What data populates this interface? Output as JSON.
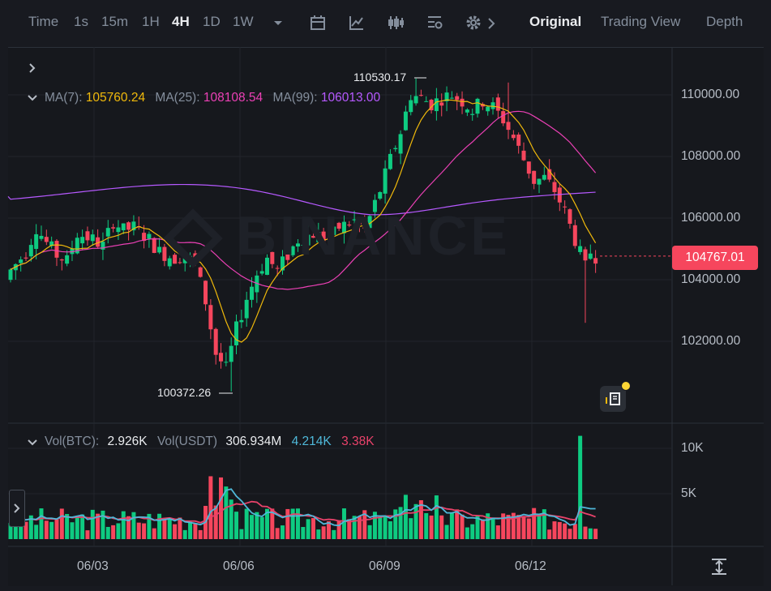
{
  "toolbar": {
    "intervals": [
      "Time",
      "1s",
      "15m",
      "1H",
      "4H",
      "1D",
      "1W"
    ],
    "active_interval": "4H",
    "views": [
      "Original",
      "Trading View",
      "Depth"
    ],
    "active_view": "Original"
  },
  "legend": {
    "ma7_label": "MA(7):",
    "ma7_value": "105760.24",
    "ma25_label": "MA(25):",
    "ma25_value": "108108.54",
    "ma99_label": "MA(99):",
    "ma99_value": "106013.00"
  },
  "vol_legend": {
    "btc_label": "Vol(BTC):",
    "btc_value": "2.926K",
    "usdt_label": "Vol(USDT)",
    "usdt_value": "306.934M",
    "ma5": "4.214K",
    "ma10": "3.38K"
  },
  "price_axis": [
    "110000.00",
    "108000.00",
    "106000.00",
    "104000.00",
    "102000.00"
  ],
  "current_price": "104767.01",
  "high_marker": "110530.17",
  "low_marker": "100372.26",
  "volume_axis": [
    "10K",
    "5K"
  ],
  "dates": [
    "06/03",
    "06/06",
    "06/09",
    "06/12"
  ],
  "watermark": "BINANCE",
  "colors": {
    "up": "#0ecb81",
    "down": "#f6465d",
    "ma7": "#f0b90b",
    "ma25": "#eb40b5",
    "ma99": "#b659ff",
    "vol_ma5": "#4fb8d9",
    "vol_ma10": "#e8426a"
  }
}
